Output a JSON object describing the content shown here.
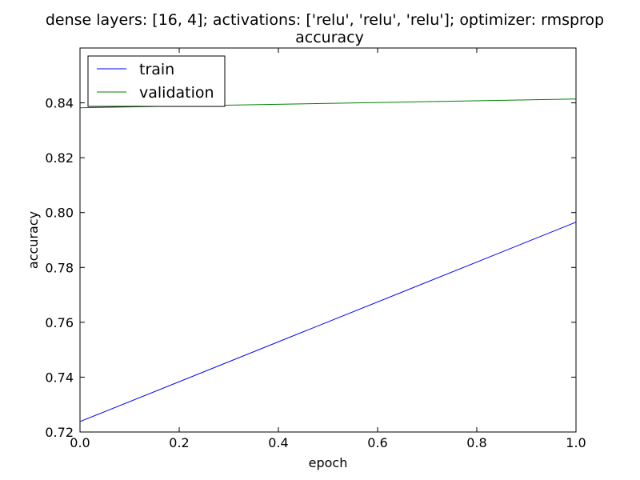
{
  "chart_data": {
    "type": "line",
    "title": "dense layers: [16, 4]; activations: ['relu', 'relu', 'relu']; optimizer: rmsprop",
    "subtitle": "accuracy",
    "xlabel": "epoch",
    "ylabel": "accuracy",
    "xlim": [
      0.0,
      1.0
    ],
    "ylim": [
      0.72,
      0.86
    ],
    "x_ticks": [
      "0.0",
      "0.2",
      "0.4",
      "0.6",
      "0.8",
      "1.0"
    ],
    "y_ticks": [
      "0.72",
      "0.74",
      "0.76",
      "0.78",
      "0.80",
      "0.82",
      "0.84"
    ],
    "grid": false,
    "legend_position": "top-left",
    "series": [
      {
        "name": "train",
        "color": "#0000ff",
        "x": [
          0,
          1
        ],
        "y": [
          0.7238,
          0.7965
        ]
      },
      {
        "name": "validation",
        "color": "#008000",
        "x": [
          0,
          1
        ],
        "y": [
          0.8382,
          0.8414
        ]
      }
    ]
  }
}
